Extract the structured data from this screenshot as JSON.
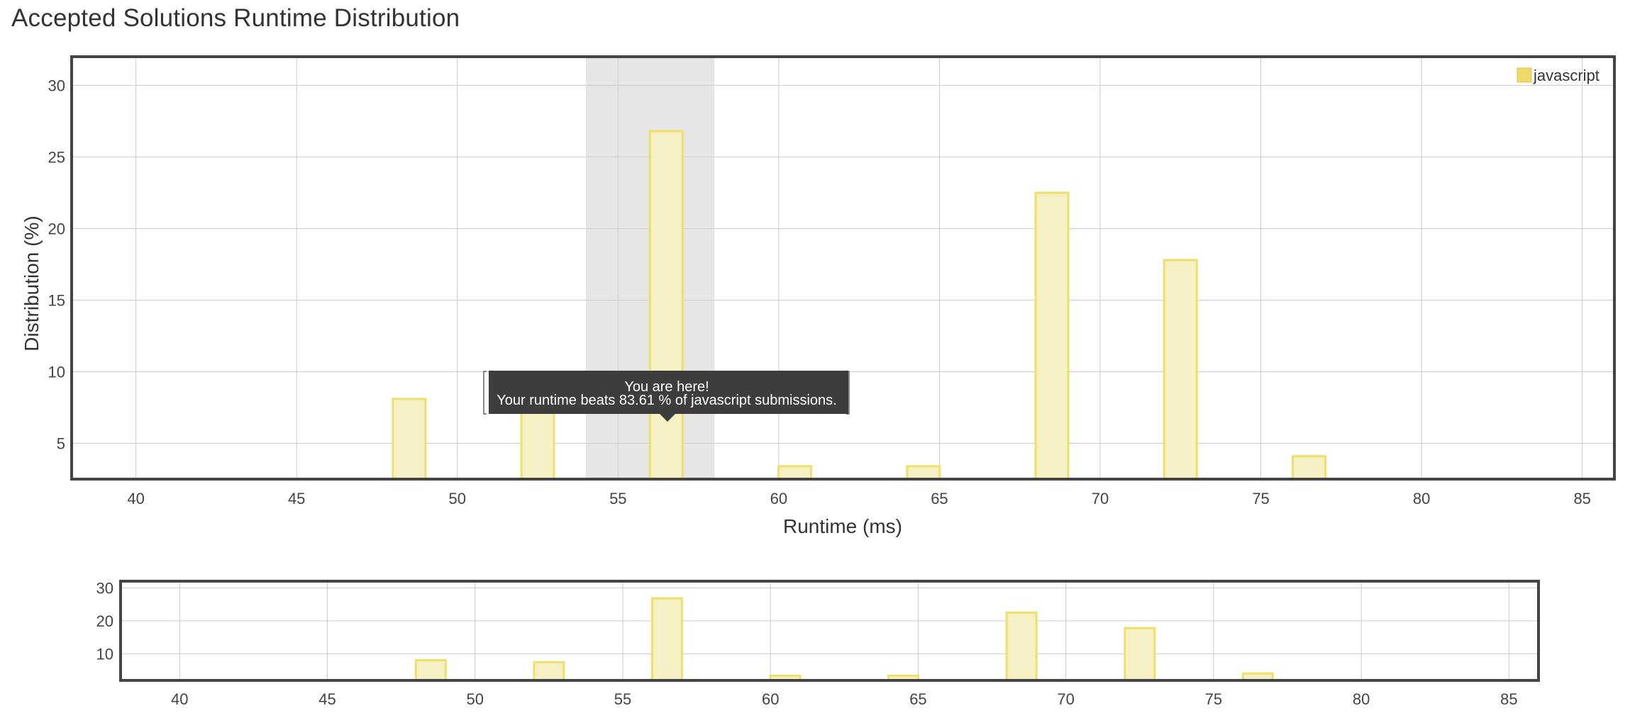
{
  "page": {
    "title": "Accepted Solutions Runtime Distribution"
  },
  "tooltip": {
    "line1": "You are here!",
    "line2": "Your runtime beats 83.61 % of javascript submissions."
  },
  "colors": {
    "bar_fill": "#f5f1c5",
    "bar_stroke": "#f0e06a",
    "legend_swatch": "#eed96a",
    "highlight": "#e6e6e6",
    "grid": "#cccccc",
    "frame": "#444444",
    "tooltip_bg": "#3d3d3d"
  },
  "chart_data": [
    {
      "type": "bar",
      "title": "",
      "xlabel": "Runtime (ms)",
      "ylabel": "Distribution (%)",
      "xlim": [
        38,
        86
      ],
      "ylim": [
        2.5,
        32
      ],
      "xticks": [
        40,
        45,
        50,
        55,
        60,
        65,
        70,
        75,
        80,
        85
      ],
      "yticks": [
        5,
        10,
        15,
        20,
        25,
        30
      ],
      "grid": true,
      "legend": "top-right",
      "highlight_range": [
        54,
        58
      ],
      "series": [
        {
          "name": "javascript",
          "x": [
            48.5,
            52.5,
            56.5,
            60.5,
            64.5,
            68.5,
            72.5,
            76.5
          ],
          "values": [
            8.1,
            7.5,
            26.8,
            3.4,
            3.4,
            22.5,
            17.8,
            4.1
          ]
        }
      ]
    },
    {
      "type": "bar",
      "title": "",
      "xlabel": "",
      "ylabel": "",
      "xlim": [
        38,
        86
      ],
      "ylim": [
        2,
        32
      ],
      "xticks": [
        40,
        45,
        50,
        55,
        60,
        65,
        70,
        75,
        80,
        85
      ],
      "yticks": [
        10,
        20,
        30
      ],
      "grid": true,
      "series": [
        {
          "x": [
            48.5,
            52.5,
            56.5,
            60.5,
            64.5,
            68.5,
            72.5,
            76.5
          ],
          "values": [
            8.1,
            7.5,
            26.8,
            3.4,
            3.4,
            22.5,
            17.8,
            4.1
          ]
        }
      ]
    }
  ]
}
